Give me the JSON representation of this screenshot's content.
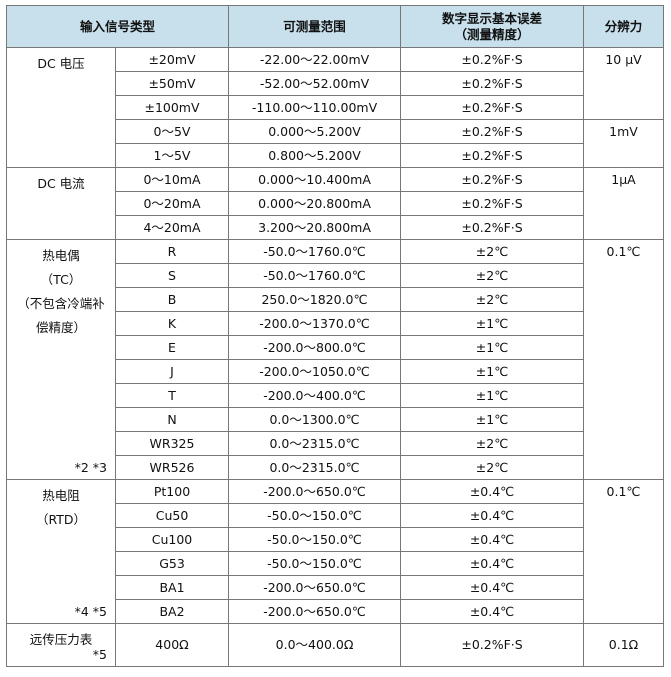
{
  "header": {
    "signal_type": "输入信号类型",
    "range": "可测量范围",
    "accuracy": [
      "数字显示基本误差",
      "（测量精度）"
    ],
    "resolution": "分辨力"
  },
  "groups": [
    {
      "label": [
        "DC 电压"
      ],
      "blocks": [
        {
          "resolution": "10 μV",
          "rows": [
            [
              "±20mV",
              "-22.00～22.00mV",
              "±0.2%F·S"
            ],
            [
              "±50mV",
              "-52.00～52.00mV",
              "±0.2%F·S"
            ],
            [
              "±100mV",
              "-110.00～110.00mV",
              "±0.2%F·S"
            ]
          ]
        },
        {
          "resolution": "1mV",
          "rows": [
            [
              "0～5V",
              "0.000～5.200V",
              "±0.2%F·S"
            ],
            [
              "1～5V",
              "0.800～5.200V",
              "±0.2%F·S"
            ]
          ]
        }
      ]
    },
    {
      "label": [
        "DC 电流"
      ],
      "blocks": [
        {
          "resolution": "1μA",
          "rows": [
            [
              "0～10mA",
              "0.000～10.400mA",
              "±0.2%F·S"
            ],
            [
              "0～20mA",
              "0.000～20.800mA",
              "±0.2%F·S"
            ],
            [
              "4～20mA",
              "3.200～20.800mA",
              "±0.2%F·S"
            ]
          ]
        }
      ]
    },
    {
      "label": [
        "热电偶",
        "（TC）",
        "（不包含冷端补",
        "偿精度）"
      ],
      "note": "*2 *3",
      "blocks": [
        {
          "resolution": "0.1℃",
          "rows": [
            [
              "R",
              "-50.0～1760.0℃",
              "±2℃"
            ],
            [
              "S",
              "-50.0～1760.0℃",
              "±2℃"
            ],
            [
              "B",
              "250.0～1820.0℃",
              "±2℃"
            ],
            [
              "K",
              "-200.0～1370.0℃",
              "±1℃"
            ],
            [
              "E",
              "-200.0～800.0℃",
              "±1℃"
            ],
            [
              "J",
              "-200.0～1050.0℃",
              "±1℃"
            ],
            [
              "T",
              "-200.0～400.0℃",
              "±1℃"
            ],
            [
              "N",
              "0.0～1300.0℃",
              "±1℃"
            ],
            [
              "WR325",
              "0.0～2315.0℃",
              "±2℃"
            ],
            [
              "WR526",
              "0.0～2315.0℃",
              "±2℃"
            ]
          ]
        }
      ]
    },
    {
      "label": [
        "热电阻",
        "（RTD）"
      ],
      "note": "*4 *5",
      "blocks": [
        {
          "resolution": "0.1℃",
          "rows": [
            [
              "Pt100",
              "-200.0～650.0℃",
              "±0.4℃"
            ],
            [
              "Cu50",
              "-50.0～150.0℃",
              "±0.4℃"
            ],
            [
              "Cu100",
              "-50.0～150.0℃",
              "±0.4℃"
            ],
            [
              "G53",
              "-50.0～150.0℃",
              "±0.4℃"
            ],
            [
              "BA1",
              "-200.0～650.0℃",
              "±0.4℃"
            ],
            [
              "BA2",
              "-200.0～650.0℃",
              "±0.4℃"
            ]
          ]
        }
      ]
    },
    {
      "label": [
        "远传压力表"
      ],
      "note": "*5",
      "blocks": [
        {
          "resolution": "0.1Ω",
          "rows": [
            [
              "400Ω",
              "0.0～400.0Ω",
              "±0.2%F·S"
            ]
          ]
        }
      ]
    }
  ]
}
